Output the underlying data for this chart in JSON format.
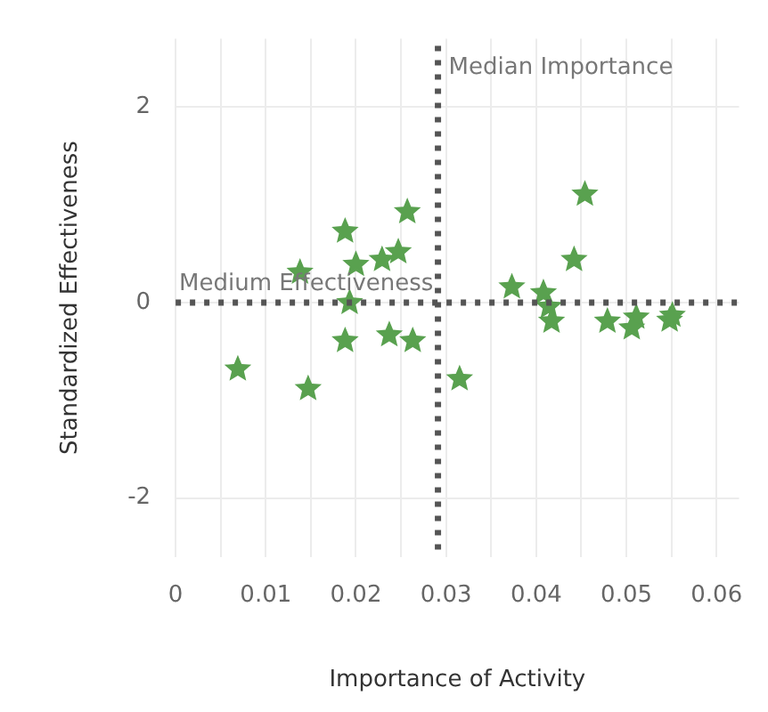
{
  "chart_data": {
    "type": "scatter",
    "xlabel": "Importance of Activity",
    "ylabel": "Standardized Effectiveness",
    "x": [
      0.0069,
      0.0147,
      0.0188,
      0.0138,
      0.02,
      0.0193,
      0.0188,
      0.0229,
      0.0247,
      0.0257,
      0.0237,
      0.0263,
      0.0315,
      0.0373,
      0.0408,
      0.0414,
      0.0417,
      0.0442,
      0.0454,
      0.0479,
      0.0511,
      0.0506,
      0.0548,
      0.0551
    ],
    "series": [
      {
        "color": "#59a14f",
        "values": [
          -0.68,
          -0.88,
          0.73,
          0.31,
          0.39,
          0.0,
          -0.39,
          0.44,
          0.52,
          0.93,
          -0.33,
          -0.39,
          -0.78,
          0.16,
          0.1,
          -0.04,
          -0.19,
          0.44,
          1.11,
          -0.19,
          -0.15,
          -0.26,
          -0.18,
          -0.13
        ]
      }
    ],
    "xlim": [
      0,
      0.0625
    ],
    "ylim": [
      -2.6,
      2.7
    ],
    "xticks": [
      0,
      {
        "value": 0.005,
        "label": null
      },
      0.01,
      {
        "value": 0.015,
        "label": null
      },
      0.02,
      {
        "value": 0.025,
        "label": null
      },
      0.03,
      {
        "value": 0.035,
        "label": null
      },
      0.04,
      {
        "value": 0.045,
        "label": null
      },
      0.05,
      {
        "value": 0.055,
        "label": null
      },
      0.06
    ],
    "yticks": [
      -2,
      0,
      2
    ],
    "ref_lines": [
      {
        "axis": "x",
        "value": 0.0291,
        "label": "Median Importance",
        "color": "#555555",
        "line_style": "dotted"
      },
      {
        "axis": "y",
        "value": 0,
        "label": "Medium Effectiveness",
        "color": "#555555",
        "line_style": "dotted"
      }
    ],
    "grid": true,
    "legend": false,
    "marker": "star"
  }
}
